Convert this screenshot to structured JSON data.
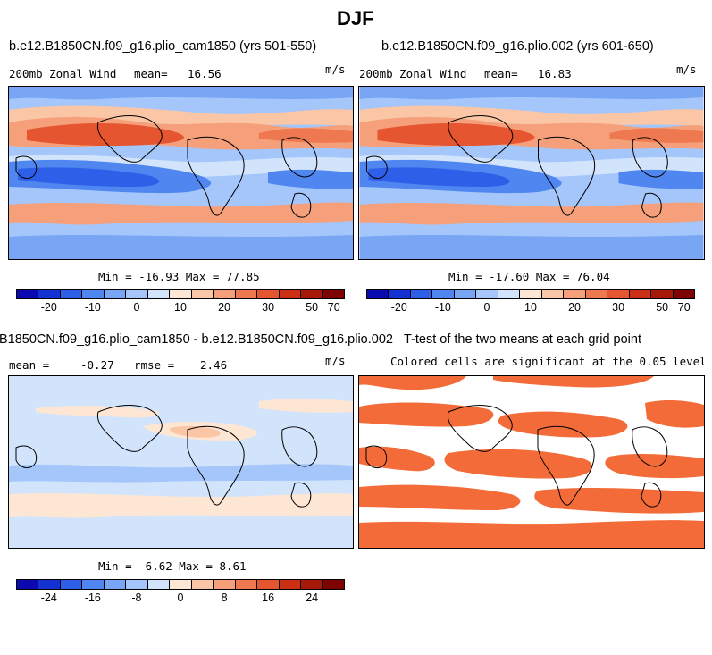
{
  "figure": {
    "title": "DJF"
  },
  "panels": {
    "top_left": {
      "title": "b.e12.B1850CN.f09_g16.plio_cam1850 (yrs 501-550)",
      "field": "200mb Zonal Wind",
      "mean_label": "mean=",
      "mean": "16.56",
      "units": "m/s",
      "minmax": "Min = -16.93 Max = 77.85"
    },
    "top_right": {
      "title": "b.e12.B1850CN.f09_g16.plio.002 (yrs 601-650)",
      "field": "200mb Zonal Wind",
      "mean_label": "mean=",
      "mean": "16.83",
      "units": "m/s",
      "minmax": "Min = -17.60 Max = 76.04"
    },
    "bottom_left": {
      "title": "B1850CN.f09_g16.plio_cam1850 - b.e12.B1850CN.f09_g16.plio.002",
      "mean_label": "mean =",
      "mean": "-0.27",
      "rmse_label": "rmse =",
      "rmse": "2.46",
      "units": "m/s",
      "minmax": "Min = -6.62 Max = 8.61"
    },
    "bottom_right": {
      "title": "T-test of the two means at each grid point",
      "subtitle": "Colored cells are significant at the 0.05 level"
    }
  },
  "colorbars": {
    "wind": {
      "colors": [
        "#0a0ab0",
        "#1432d2",
        "#2e5fe8",
        "#4f86f0",
        "#78a5f4",
        "#a4c6fa",
        "#d2e4fb",
        "#fde6d4",
        "#fbc6a6",
        "#f5a07a",
        "#ee7850",
        "#e45530",
        "#cc3014",
        "#a81808",
        "#7e0404"
      ],
      "tick_labels": [
        "-20",
        "-10",
        "0",
        "10",
        "20",
        "30",
        "50",
        "70"
      ]
    },
    "diff": {
      "colors": [
        "#0a0ab0",
        "#1432d2",
        "#2e5fe8",
        "#4f86f0",
        "#78a5f4",
        "#a4c6fa",
        "#d2e4fb",
        "#fde6d4",
        "#fbc6a6",
        "#f5a07a",
        "#ee7850",
        "#e45530",
        "#cc3014",
        "#a81808",
        "#7e0404"
      ],
      "tick_labels": [
        "-24",
        "-16",
        "-8",
        "0",
        "8",
        "16",
        "24"
      ]
    }
  },
  "chart_data": [
    {
      "type": "heatmap",
      "title": "200mb Zonal Wind (plio_cam1850, yrs 501-550)",
      "units": "m/s",
      "mean": 16.56,
      "min": -16.93,
      "max": 77.85,
      "contour_levels": [
        -20,
        -15,
        -10,
        -5,
        0,
        5,
        10,
        15,
        20,
        25,
        30,
        40,
        50,
        60,
        70
      ]
    },
    {
      "type": "heatmap",
      "title": "200mb Zonal Wind (plio.002, yrs 601-650)",
      "units": "m/s",
      "mean": 16.83,
      "min": -17.6,
      "max": 76.04,
      "contour_levels": [
        -20,
        -15,
        -10,
        -5,
        0,
        5,
        10,
        15,
        20,
        25,
        30,
        40,
        50,
        60,
        70
      ]
    },
    {
      "type": "heatmap",
      "title": "Difference (plio_cam1850 - plio.002)",
      "units": "m/s",
      "mean": -0.27,
      "rmse": 2.46,
      "min": -6.62,
      "max": 8.61,
      "contour_levels": [
        -24,
        -20,
        -16,
        -12,
        -8,
        -4,
        0,
        4,
        8,
        12,
        16,
        20,
        24
      ]
    },
    {
      "type": "heatmap",
      "title": "T-test of the two means at each grid point",
      "significance_level": 0.05
    }
  ]
}
